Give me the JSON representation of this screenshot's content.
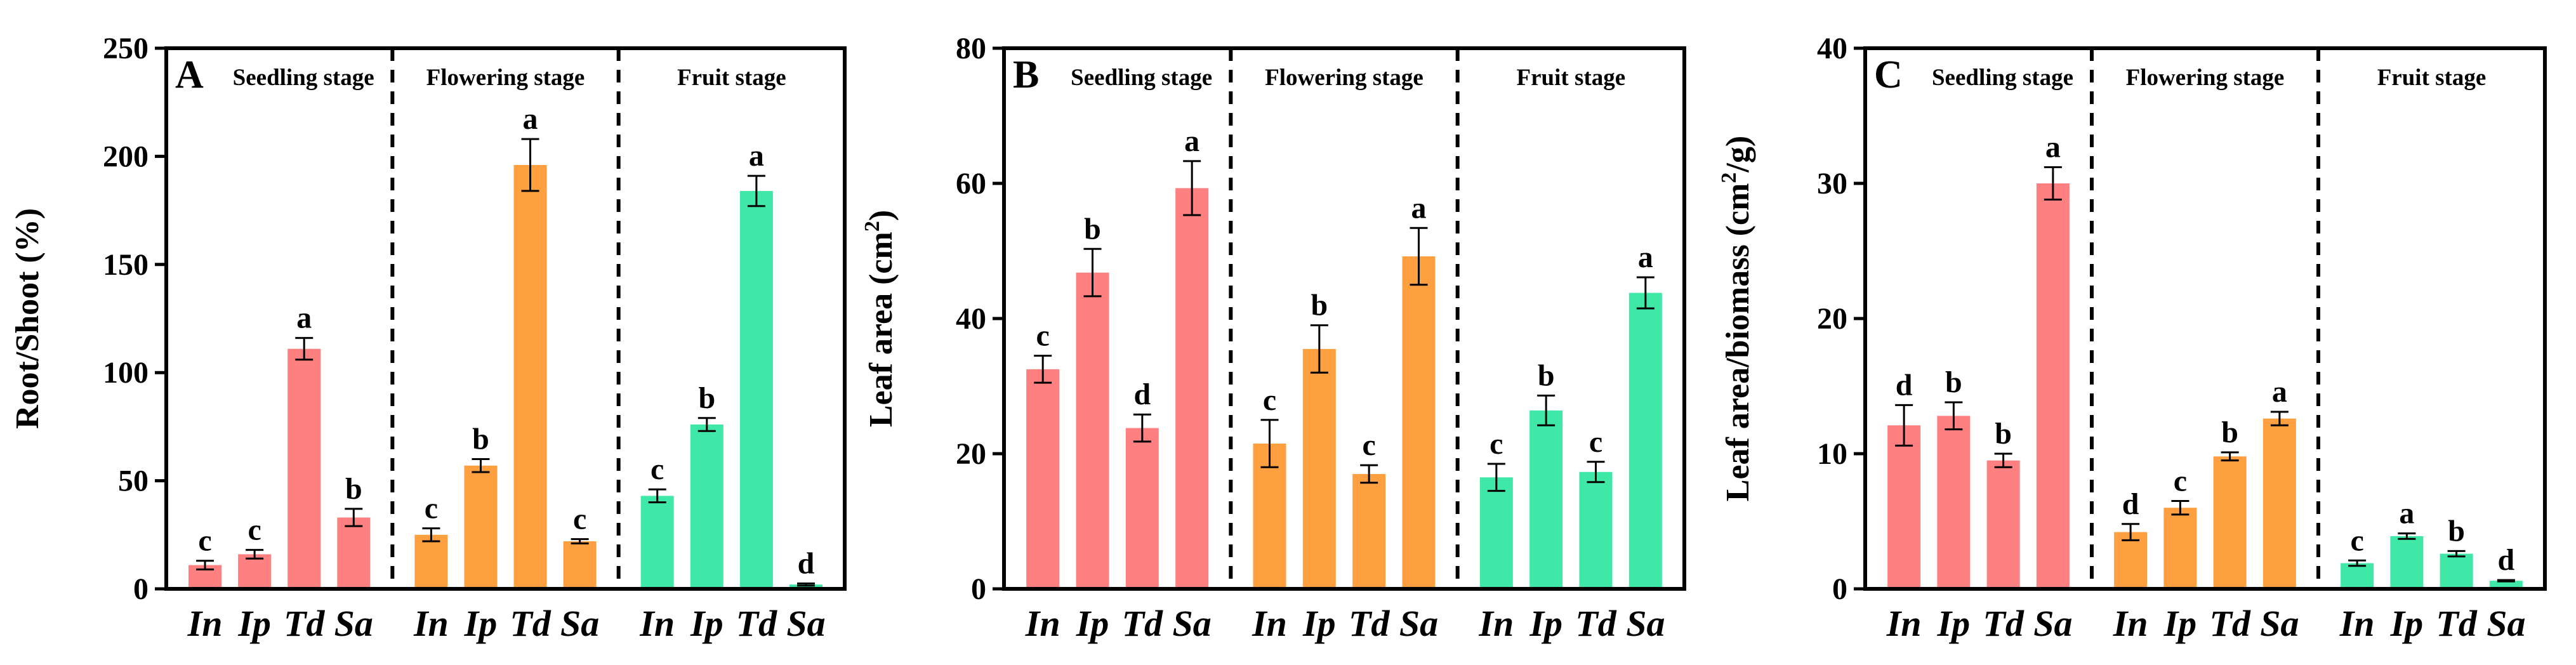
{
  "chart_data": [
    {
      "type": "bar",
      "panel_label": "A",
      "ylabel": "Root/Shoot (%)",
      "ylim": [
        0,
        250
      ],
      "yticks": [
        0,
        50,
        100,
        150,
        200,
        250
      ],
      "groups": [
        {
          "name": "Seedling stage",
          "color": "#FF8080",
          "categories": [
            "In",
            "Ip",
            "Td",
            "Sa"
          ],
          "values": [
            11,
            16,
            111,
            33
          ],
          "errors": [
            2,
            2,
            5,
            4
          ],
          "sig": [
            "c",
            "c",
            "a",
            "b"
          ]
        },
        {
          "name": "Flowering stage",
          "color": "#FFA040",
          "categories": [
            "In",
            "Ip",
            "Td",
            "Sa"
          ],
          "values": [
            25,
            57,
            196,
            22
          ],
          "errors": [
            3,
            3,
            12,
            1
          ],
          "sig": [
            "c",
            "b",
            "a",
            "c"
          ]
        },
        {
          "name": "Fruit stage",
          "color": "#40E8A8",
          "categories": [
            "In",
            "Ip",
            "Td",
            "Sa"
          ],
          "values": [
            43,
            76,
            184,
            2
          ],
          "errors": [
            3,
            3,
            7,
            0.5
          ],
          "sig": [
            "c",
            "b",
            "a",
            "d"
          ]
        }
      ]
    },
    {
      "type": "bar",
      "panel_label": "B",
      "ylabel": "Leaf area (cm",
      "ylabel_sup": "2",
      "ylabel_end": ")",
      "ylim": [
        0,
        80
      ],
      "yticks": [
        0,
        20,
        40,
        60,
        80
      ],
      "groups": [
        {
          "name": "Seedling stage",
          "color": "#FF8080",
          "categories": [
            "In",
            "Ip",
            "Td",
            "Sa"
          ],
          "values": [
            32.5,
            46.8,
            23.8,
            59.3
          ],
          "errors": [
            2,
            3.5,
            2,
            4
          ],
          "sig": [
            "c",
            "b",
            "d",
            "a"
          ]
        },
        {
          "name": "Flowering stage",
          "color": "#FFA040",
          "categories": [
            "In",
            "Ip",
            "Td",
            "Sa"
          ],
          "values": [
            21.5,
            35.5,
            17,
            49.2
          ],
          "errors": [
            3.5,
            3.5,
            1.3,
            4.2
          ],
          "sig": [
            "c",
            "b",
            "c",
            "a"
          ]
        },
        {
          "name": "Fruit stage",
          "color": "#40E8A8",
          "categories": [
            "In",
            "Ip",
            "Td",
            "Sa"
          ],
          "values": [
            16.5,
            26.4,
            17.3,
            43.8
          ],
          "errors": [
            2,
            2.2,
            1.5,
            2.3
          ],
          "sig": [
            "c",
            "b",
            "c",
            "a"
          ]
        }
      ]
    },
    {
      "type": "bar",
      "panel_label": "C",
      "ylabel": "Leaf area/biomass (cm",
      "ylabel_sup": "2",
      "ylabel_end": "/g)",
      "ylim": [
        0,
        40
      ],
      "yticks": [
        0,
        10,
        20,
        30,
        40
      ],
      "groups": [
        {
          "name": "Seedling stage",
          "color": "#FF8080",
          "categories": [
            "In",
            "Ip",
            "Td",
            "Sa"
          ],
          "values": [
            12.1,
            12.8,
            9.5,
            30
          ],
          "errors": [
            1.5,
            1,
            0.5,
            1.2
          ],
          "sig": [
            "d",
            "b",
            "b",
            "a"
          ]
        },
        {
          "name": "Flowering stage",
          "color": "#FFA040",
          "categories": [
            "In",
            "Ip",
            "Td",
            "Sa"
          ],
          "values": [
            4.2,
            6,
            9.8,
            12.6
          ],
          "errors": [
            0.6,
            0.5,
            0.3,
            0.5
          ],
          "sig": [
            "d",
            "c",
            "b",
            "a"
          ]
        },
        {
          "name": "Fruit stage",
          "color": "#40E8A8",
          "categories": [
            "In",
            "Ip",
            "Td",
            "Sa"
          ],
          "values": [
            1.9,
            3.9,
            2.6,
            0.6
          ],
          "errors": [
            0.2,
            0.2,
            0.2,
            0.05
          ],
          "sig": [
            "c",
            "a",
            "b",
            "d"
          ]
        }
      ]
    }
  ]
}
